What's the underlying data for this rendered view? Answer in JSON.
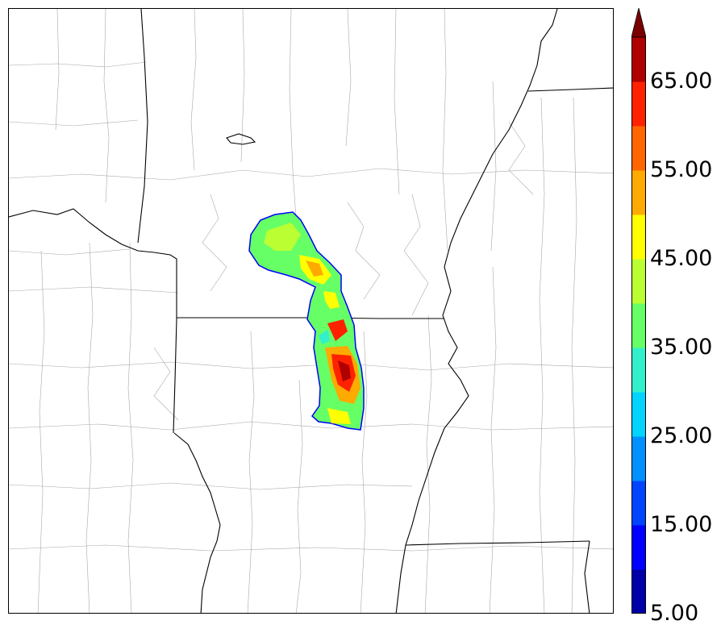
{
  "colorbar": {
    "levels": [
      5,
      10,
      15,
      20,
      25,
      30,
      35,
      40,
      45,
      50,
      55,
      60,
      65,
      70
    ],
    "colors": [
      "#0000a8",
      "#0000ff",
      "#0044ff",
      "#0090ff",
      "#00d4ff",
      "#33f0cc",
      "#66ff66",
      "#bbff33",
      "#ffff00",
      "#ffaa00",
      "#ff6600",
      "#ff2200",
      "#b00000",
      "#7a0000"
    ],
    "extend": "max",
    "tick_labels": [
      "5.00",
      "15.00",
      "25.00",
      "35.00",
      "45.00",
      "55.00",
      "65.00"
    ]
  },
  "map": {
    "feature": "precipitation swath",
    "county_line_color": "#999999",
    "state_line_color": "#000000"
  }
}
